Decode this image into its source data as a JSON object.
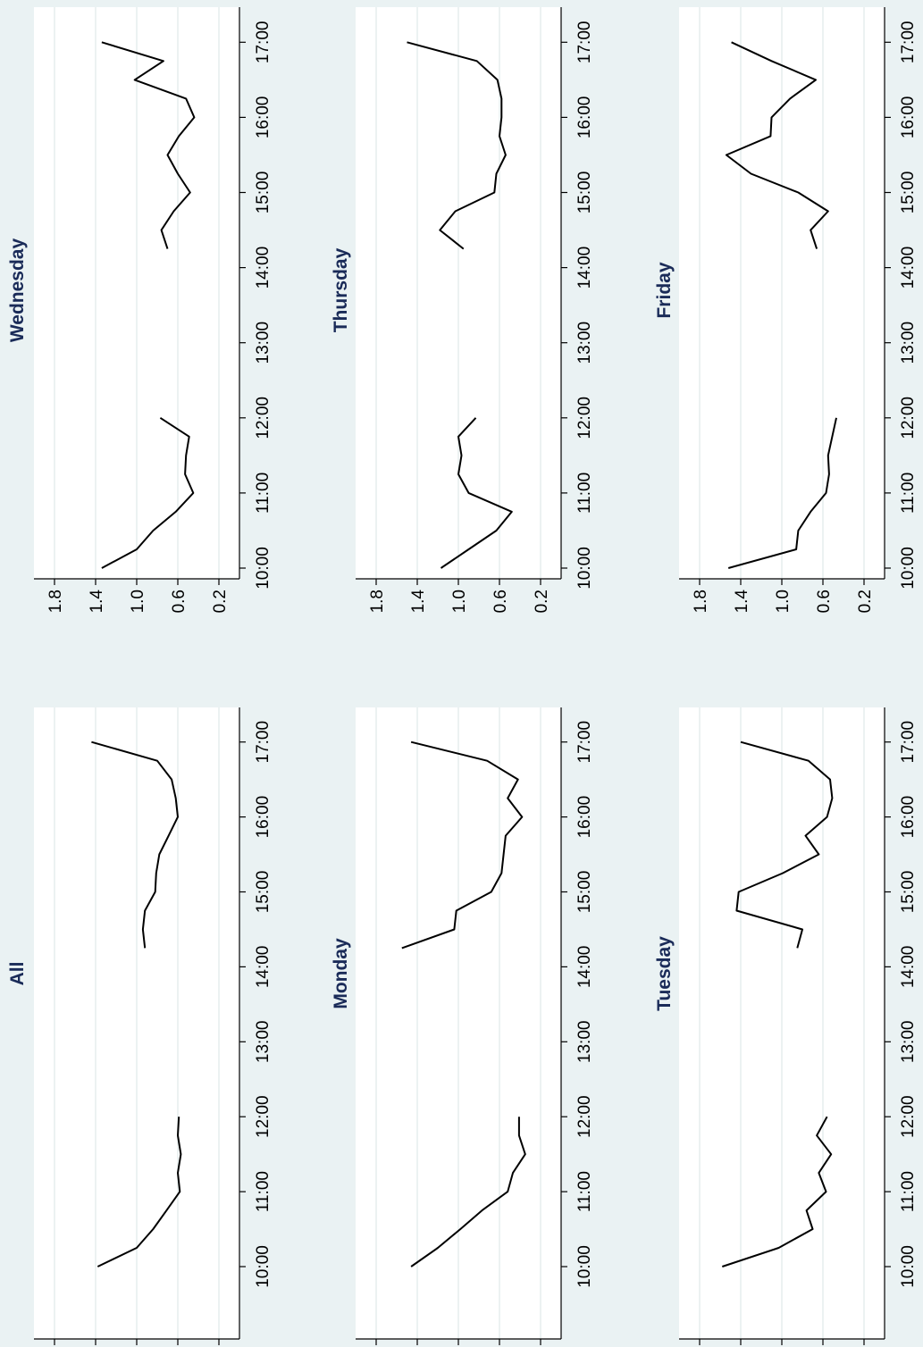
{
  "figure": {
    "orientation": "rotated-90",
    "background": "#eaf2f3"
  },
  "chart_data": [
    {
      "type": "line",
      "title": "All",
      "ylim": [
        0,
        2.0
      ],
      "yticks": [
        "1.8",
        "1.4",
        "1.0",
        "0.6",
        "0.2"
      ],
      "ytick_values": [
        1.8,
        1.4,
        1.0,
        0.6,
        0.2
      ],
      "xticks": [
        "10:00",
        "11:00",
        "12:00",
        "13:00",
        "14:00",
        "15:00",
        "16:00",
        "17:00"
      ],
      "xtick_values": [
        10,
        11,
        12,
        13,
        14,
        15,
        16,
        17
      ],
      "series": [
        {
          "x": [
            10,
            10.25,
            10.5,
            10.75,
            11,
            11.25,
            11.5,
            11.75,
            12
          ],
          "y": [
            1.38,
            1.0,
            0.84,
            0.71,
            0.58,
            0.6,
            0.57,
            0.6,
            0.59
          ]
        },
        {
          "x": [
            14.25,
            14.5,
            14.75,
            15,
            15.25,
            15.5,
            15.75,
            16,
            16.25,
            16.5,
            16.75,
            17
          ],
          "y": [
            0.92,
            0.94,
            0.92,
            0.82,
            0.81,
            0.78,
            0.69,
            0.6,
            0.62,
            0.66,
            0.8,
            1.44
          ]
        }
      ],
      "grid": true,
      "color": "#000000"
    },
    {
      "type": "line",
      "title": "Wednesday",
      "ylim": [
        0,
        2.0
      ],
      "yticks": [
        "1.8",
        "1.4",
        "1.0",
        "0.6",
        "0.2"
      ],
      "ytick_values": [
        1.8,
        1.4,
        1.0,
        0.6,
        0.2
      ],
      "xticks": [
        "10:00",
        "11:00",
        "12:00",
        "13:00",
        "14:00",
        "15:00",
        "16:00",
        "17:00"
      ],
      "xtick_values": [
        10,
        11,
        12,
        13,
        14,
        15,
        16,
        17
      ],
      "series": [
        {
          "x": [
            10,
            10.25,
            10.5,
            10.75,
            11,
            11.25,
            11.5,
            11.75,
            12
          ],
          "y": [
            1.34,
            1.0,
            0.84,
            0.62,
            0.45,
            0.53,
            0.52,
            0.49,
            0.77
          ]
        },
        {
          "x": [
            14.25,
            14.5,
            14.75,
            15,
            15.25,
            15.5,
            15.75,
            16,
            16.25,
            16.5,
            16.75,
            17
          ],
          "y": [
            0.7,
            0.76,
            0.64,
            0.48,
            0.6,
            0.7,
            0.59,
            0.44,
            0.52,
            1.02,
            0.74,
            1.34
          ]
        }
      ],
      "grid": true,
      "color": "#000000"
    },
    {
      "type": "line",
      "title": "Monday",
      "ylim": [
        0,
        2.0
      ],
      "yticks": [
        "1.8",
        "1.4",
        "1.0",
        "0.6",
        "0.2"
      ],
      "ytick_values": [
        1.8,
        1.4,
        1.0,
        0.6,
        0.2
      ],
      "xticks": [
        "10:00",
        "11:00",
        "12:00",
        "13:00",
        "14:00",
        "15:00",
        "16:00",
        "17:00"
      ],
      "xtick_values": [
        10,
        11,
        12,
        13,
        14,
        15,
        16,
        17
      ],
      "series": [
        {
          "x": [
            10,
            10.25,
            10.5,
            10.75,
            11,
            11.25,
            11.5,
            11.75,
            12
          ],
          "y": [
            1.46,
            1.2,
            0.98,
            0.77,
            0.52,
            0.47,
            0.35,
            0.41,
            0.41
          ]
        },
        {
          "x": [
            14.25,
            14.5,
            14.75,
            15,
            15.25,
            15.5,
            15.75,
            16,
            16.25,
            16.5,
            16.75,
            17
          ],
          "y": [
            1.55,
            1.04,
            1.02,
            0.68,
            0.58,
            0.56,
            0.54,
            0.38,
            0.52,
            0.42,
            0.72,
            1.46
          ]
        }
      ],
      "grid": true,
      "color": "#000000"
    },
    {
      "type": "line",
      "title": "Thursday",
      "ylim": [
        0,
        2.0
      ],
      "yticks": [
        "1.8",
        "1.4",
        "1.0",
        "0.6",
        "0.2"
      ],
      "ytick_values": [
        1.8,
        1.4,
        1.0,
        0.6,
        0.2
      ],
      "xticks": [
        "10:00",
        "11:00",
        "12:00",
        "13:00",
        "14:00",
        "15:00",
        "16:00",
        "17:00"
      ],
      "xtick_values": [
        10,
        11,
        12,
        13,
        14,
        15,
        16,
        17
      ],
      "series": [
        {
          "x": [
            10,
            10.25,
            10.5,
            10.75,
            11,
            11.25,
            11.5,
            11.75,
            12
          ],
          "y": [
            1.17,
            0.9,
            0.63,
            0.48,
            0.9,
            1.0,
            0.97,
            1.0,
            0.83
          ]
        },
        {
          "x": [
            14.25,
            14.5,
            14.75,
            15,
            15.25,
            15.5,
            15.75,
            16,
            16.25,
            16.5,
            16.75,
            17
          ],
          "y": [
            0.95,
            1.18,
            1.03,
            0.65,
            0.63,
            0.54,
            0.6,
            0.58,
            0.58,
            0.62,
            0.82,
            1.5
          ]
        }
      ],
      "grid": true,
      "color": "#000000"
    },
    {
      "type": "line",
      "title": "Tuesday",
      "ylim": [
        0,
        2.0
      ],
      "yticks": [
        "1.8",
        "1.4",
        "1.0",
        "0.6",
        "0.2"
      ],
      "ytick_values": [
        1.8,
        1.4,
        1.0,
        0.6,
        0.2
      ],
      "xticks": [
        "10:00",
        "11:00",
        "12:00",
        "13:00",
        "14:00",
        "15:00",
        "16:00",
        "17:00"
      ],
      "xtick_values": [
        10,
        11,
        12,
        13,
        14,
        15,
        16,
        17
      ],
      "series": [
        {
          "x": [
            10,
            10.25,
            10.5,
            10.75,
            11,
            11.25,
            11.5,
            11.75,
            12
          ],
          "y": [
            1.58,
            1.03,
            0.7,
            0.76,
            0.57,
            0.64,
            0.52,
            0.66,
            0.56
          ]
        },
        {
          "x": [
            14.25,
            14.5,
            14.75,
            15,
            15.25,
            15.5,
            15.75,
            16,
            16.25,
            16.5,
            16.75,
            17
          ],
          "y": [
            0.85,
            0.8,
            1.44,
            1.42,
            0.99,
            0.64,
            0.77,
            0.56,
            0.51,
            0.53,
            0.74,
            1.4
          ]
        }
      ],
      "grid": true,
      "color": "#000000"
    },
    {
      "type": "line",
      "title": "Friday",
      "ylim": [
        0,
        2.0
      ],
      "yticks": [
        "1.8",
        "1.4",
        "1.0",
        "0.6",
        "0.2"
      ],
      "ytick_values": [
        1.8,
        1.4,
        1.0,
        0.6,
        0.2
      ],
      "xticks": [
        "10:00",
        "11:00",
        "12:00",
        "13:00",
        "14:00",
        "15:00",
        "16:00",
        "17:00"
      ],
      "xtick_values": [
        10,
        11,
        12,
        13,
        14,
        15,
        16,
        17
      ],
      "series": [
        {
          "x": [
            10,
            10.25,
            10.5,
            10.75,
            11,
            11.25,
            11.5,
            11.75,
            12
          ],
          "y": [
            1.52,
            0.86,
            0.84,
            0.72,
            0.57,
            0.54,
            0.55,
            0.51,
            0.47
          ]
        },
        {
          "x": [
            14.25,
            14.5,
            14.75,
            15,
            15.25,
            15.5,
            15.75,
            16,
            16.25,
            16.5,
            16.75,
            17
          ],
          "y": [
            0.66,
            0.72,
            0.55,
            0.84,
            1.3,
            1.54,
            1.11,
            1.1,
            0.92,
            0.67,
            1.1,
            1.49
          ]
        }
      ],
      "grid": true,
      "color": "#000000"
    }
  ]
}
